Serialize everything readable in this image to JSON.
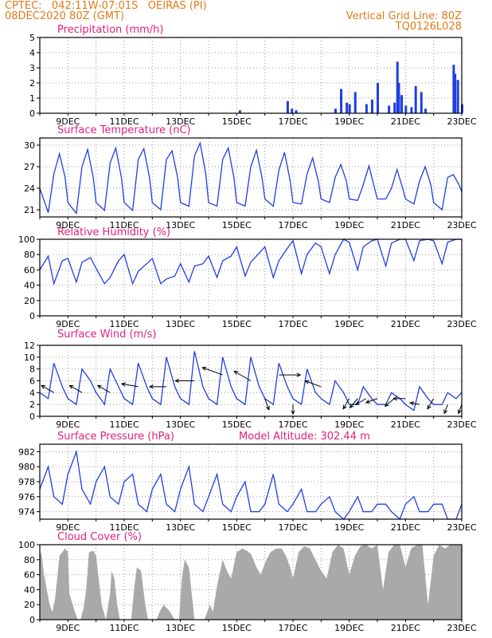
{
  "header": {
    "line1": "CPTEC:   042:11W-07:01S   OEIRAS (PI)",
    "line2": "08DEC2020 80Z (GMT)",
    "grid_note": "Vertical Grid Line: 80Z",
    "product": "TQ0126L028"
  },
  "colors": {
    "header": "#e07a18",
    "title": "#e0207a",
    "line": "#1f3fe0",
    "bar": "#1f3fe0",
    "cloud": "#a9a9a9",
    "grid": "#9a9a9a"
  },
  "x_tick_labels": [
    "9DEC",
    "11DEC",
    "13DEC",
    "15DEC",
    "17DEC",
    "19DEC",
    "21DEC",
    "23DEC"
  ],
  "chart_data": [
    {
      "id": "precip",
      "type": "bar",
      "title": "Precipitation (mm/h)",
      "x_days": [
        15.1,
        16.8,
        16.95,
        17.1,
        18.5,
        18.7,
        18.9,
        19.0,
        19.2,
        19.6,
        19.8,
        20.0,
        20.4,
        20.6,
        20.7,
        20.75,
        20.85,
        21.0,
        21.2,
        21.35,
        21.55,
        21.7,
        22.7,
        22.75,
        22.85,
        23.0
      ],
      "values": [
        0.2,
        0.8,
        0.3,
        0.2,
        0.3,
        1.6,
        0.7,
        0.6,
        1.4,
        0.6,
        0.9,
        2.0,
        0.5,
        0.7,
        3.4,
        2.0,
        1.2,
        0.5,
        0.4,
        1.8,
        1.4,
        0.3,
        3.2,
        2.6,
        2.2,
        0.6
      ],
      "ylim": [
        0,
        5
      ],
      "yticks": [
        0,
        1,
        2,
        3,
        4,
        5
      ]
    },
    {
      "id": "temp",
      "type": "line",
      "title": "Surface Temperature (nC)",
      "x_days": [
        8.0,
        8.3,
        8.5,
        8.7,
        8.9,
        9.0,
        9.3,
        9.5,
        9.7,
        9.9,
        10.0,
        10.3,
        10.5,
        10.7,
        10.9,
        11.0,
        11.3,
        11.5,
        11.7,
        11.9,
        12.0,
        12.3,
        12.5,
        12.7,
        12.9,
        13.0,
        13.3,
        13.5,
        13.7,
        13.9,
        14.0,
        14.3,
        14.5,
        14.7,
        14.9,
        15.0,
        15.3,
        15.5,
        15.7,
        15.9,
        16.0,
        16.3,
        16.5,
        16.7,
        16.9,
        17.0,
        17.3,
        17.5,
        17.7,
        17.9,
        18.0,
        18.3,
        18.5,
        18.7,
        18.9,
        19.0,
        19.3,
        19.5,
        19.7,
        19.9,
        20.0,
        20.3,
        20.5,
        20.7,
        20.9,
        21.0,
        21.3,
        21.5,
        21.7,
        21.9,
        22.0,
        22.3,
        22.5,
        22.7,
        22.9,
        23.0
      ],
      "values": [
        24.0,
        20.6,
        26.0,
        28.8,
        25.5,
        22.0,
        20.5,
        27.0,
        29.4,
        25.5,
        22.0,
        20.9,
        27.5,
        29.6,
        25.5,
        22.0,
        20.9,
        28.0,
        29.5,
        25.5,
        22.0,
        21.0,
        28.0,
        29.2,
        25.5,
        22.0,
        21.5,
        28.5,
        30.3,
        26.0,
        22.0,
        21.5,
        28.0,
        29.6,
        25.5,
        22.0,
        21.5,
        27.0,
        29.3,
        25.5,
        22.5,
        21.5,
        26.5,
        29.0,
        25.0,
        22.0,
        21.8,
        26.0,
        28.2,
        25.0,
        22.5,
        22.0,
        25.5,
        27.3,
        25.0,
        22.5,
        22.3,
        24.5,
        27.1,
        24.0,
        22.5,
        22.5,
        24.0,
        26.6,
        24.0,
        22.5,
        21.8,
        25.0,
        27.0,
        24.5,
        22.0,
        21.0,
        25.5,
        25.9,
        24.5,
        23.5
      ],
      "ylim": [
        20,
        31
      ],
      "yticks": [
        21,
        24,
        27,
        30
      ]
    },
    {
      "id": "rh",
      "type": "line",
      "title": "Relative Humidity (%)",
      "x_days": [
        8.0,
        8.3,
        8.5,
        8.8,
        9.0,
        9.3,
        9.5,
        9.8,
        10.0,
        10.3,
        10.5,
        10.8,
        11.0,
        11.3,
        11.5,
        11.8,
        12.0,
        12.3,
        12.5,
        12.8,
        13.0,
        13.3,
        13.5,
        13.8,
        14.0,
        14.3,
        14.5,
        14.8,
        15.0,
        15.3,
        15.5,
        15.8,
        16.0,
        16.3,
        16.5,
        16.8,
        17.0,
        17.3,
        17.5,
        17.8,
        18.0,
        18.3,
        18.5,
        18.8,
        19.0,
        19.3,
        19.5,
        19.8,
        20.0,
        20.3,
        20.5,
        20.8,
        21.0,
        21.3,
        21.5,
        21.8,
        22.0,
        22.3,
        22.5,
        22.8,
        23.0
      ],
      "values": [
        60,
        78,
        42,
        72,
        75,
        44,
        70,
        76,
        62,
        42,
        50,
        72,
        80,
        42,
        58,
        68,
        75,
        42,
        48,
        52,
        68,
        44,
        65,
        68,
        78,
        50,
        72,
        78,
        90,
        52,
        70,
        82,
        90,
        50,
        72,
        88,
        98,
        55,
        80,
        95,
        90,
        55,
        80,
        100,
        96,
        60,
        90,
        98,
        100,
        65,
        95,
        100,
        100,
        72,
        98,
        100,
        98,
        68,
        96,
        100,
        100
      ],
      "ylim": [
        0,
        100
      ],
      "yticks": [
        0,
        20,
        40,
        60,
        80,
        100
      ]
    },
    {
      "id": "wind",
      "type": "line",
      "title": "Surface Wind (m/s)",
      "x_days": [
        8.0,
        8.3,
        8.5,
        8.8,
        9.0,
        9.3,
        9.5,
        9.8,
        10.0,
        10.3,
        10.5,
        10.8,
        11.0,
        11.3,
        11.5,
        11.8,
        12.0,
        12.3,
        12.5,
        12.8,
        13.0,
        13.3,
        13.5,
        13.8,
        14.0,
        14.3,
        14.5,
        14.8,
        15.0,
        15.3,
        15.5,
        15.8,
        16.0,
        16.3,
        16.5,
        16.8,
        17.0,
        17.3,
        17.5,
        17.8,
        18.0,
        18.3,
        18.5,
        18.8,
        19.0,
        19.3,
        19.5,
        19.8,
        20.0,
        20.3,
        20.5,
        20.8,
        21.0,
        21.3,
        21.5,
        21.8,
        22.0,
        22.3,
        22.5,
        22.8,
        23.0
      ],
      "values": [
        4,
        3,
        9,
        5,
        3,
        2,
        8,
        6,
        4,
        2,
        8,
        5,
        3,
        2,
        9,
        5,
        3,
        2,
        10,
        5,
        3,
        2,
        11,
        5,
        3,
        2,
        10,
        5,
        3,
        2,
        10,
        5,
        3,
        2,
        9,
        5,
        3,
        2,
        8,
        4,
        3,
        2,
        6,
        4,
        2,
        2,
        5,
        3,
        2,
        2,
        4,
        3,
        2,
        1,
        5,
        3,
        2,
        2,
        4,
        3,
        4
      ],
      "ylim": [
        0,
        12
      ],
      "yticks": [
        0,
        2,
        4,
        6,
        8,
        10,
        12
      ],
      "vectors": [
        {
          "day": 8.5,
          "dir_deg": 300,
          "speed": 4
        },
        {
          "day": 9.5,
          "dir_deg": 300,
          "speed": 4
        },
        {
          "day": 10.5,
          "dir_deg": 300,
          "speed": 4
        },
        {
          "day": 11.5,
          "dir_deg": 280,
          "speed": 5
        },
        {
          "day": 12.5,
          "dir_deg": 270,
          "speed": 5
        },
        {
          "day": 13.5,
          "dir_deg": 270,
          "speed": 6
        },
        {
          "day": 14.5,
          "dir_deg": 290,
          "speed": 7
        },
        {
          "day": 15.5,
          "dir_deg": 300,
          "speed": 6
        },
        {
          "day": 16.0,
          "dir_deg": 160,
          "speed": 3
        },
        {
          "day": 16.5,
          "dir_deg": 90,
          "speed": 7
        },
        {
          "day": 17.0,
          "dir_deg": 180,
          "speed": 2
        },
        {
          "day": 18.0,
          "dir_deg": 290,
          "speed": 5
        },
        {
          "day": 19.0,
          "dir_deg": 210,
          "speed": 3
        },
        {
          "day": 19.3,
          "dir_deg": 220,
          "speed": 3
        },
        {
          "day": 19.6,
          "dir_deg": 240,
          "speed": 3
        },
        {
          "day": 20.0,
          "dir_deg": 250,
          "speed": 3
        },
        {
          "day": 20.6,
          "dir_deg": 230,
          "speed": 3
        },
        {
          "day": 21.0,
          "dir_deg": 270,
          "speed": 3
        },
        {
          "day": 21.5,
          "dir_deg": 280,
          "speed": 2
        },
        {
          "day": 22.0,
          "dir_deg": 210,
          "speed": 3
        },
        {
          "day": 22.5,
          "dir_deg": 200,
          "speed": 2
        },
        {
          "day": 23.0,
          "dir_deg": 200,
          "speed": 2
        }
      ]
    },
    {
      "id": "pressure",
      "type": "line",
      "title": "Surface Pressure (hPa)",
      "subtitle": "Model Altitude: 302.44 m",
      "x_days": [
        8.0,
        8.3,
        8.5,
        8.8,
        9.0,
        9.3,
        9.5,
        9.8,
        10.0,
        10.3,
        10.5,
        10.8,
        11.0,
        11.3,
        11.5,
        11.8,
        12.0,
        12.3,
        12.5,
        12.8,
        13.0,
        13.3,
        13.5,
        13.8,
        14.0,
        14.3,
        14.5,
        14.8,
        15.0,
        15.3,
        15.5,
        15.8,
        16.0,
        16.3,
        16.5,
        16.8,
        17.0,
        17.3,
        17.5,
        17.8,
        18.0,
        18.3,
        18.5,
        18.8,
        19.0,
        19.3,
        19.5,
        19.8,
        20.0,
        20.3,
        20.5,
        20.8,
        21.0,
        21.3,
        21.5,
        21.8,
        22.0,
        22.3,
        22.5,
        22.8,
        23.0
      ],
      "values": [
        977,
        980,
        976,
        975,
        979,
        982,
        977,
        975,
        978,
        980,
        976,
        975,
        978,
        979,
        975,
        974,
        977,
        979,
        975,
        974,
        977,
        980,
        975,
        974,
        976,
        979,
        975,
        974,
        976,
        978,
        974,
        974,
        975,
        979,
        975,
        974,
        975,
        977,
        974,
        974,
        975,
        976,
        974,
        973,
        974,
        976,
        974,
        974,
        975,
        975,
        974,
        973,
        975,
        976,
        974,
        974,
        975,
        975,
        973,
        973,
        975
      ],
      "ylim": [
        973,
        983
      ],
      "yticks": [
        974,
        976,
        978,
        980,
        982
      ]
    },
    {
      "id": "cloud",
      "type": "area",
      "title": "Cloud Cover (%)",
      "x_days": [
        8.0,
        8.05,
        8.15,
        8.25,
        8.35,
        8.45,
        8.55,
        8.7,
        8.9,
        9.0,
        9.05,
        9.25,
        9.35,
        9.45,
        9.55,
        9.65,
        9.75,
        9.9,
        10.0,
        10.2,
        10.35,
        10.5,
        10.55,
        10.65,
        10.75,
        10.85,
        11.0,
        11.15,
        11.25,
        11.35,
        11.45,
        11.6,
        11.75,
        11.85,
        11.95,
        12.05,
        12.15,
        12.25,
        12.4,
        12.6,
        12.8,
        12.95,
        13.05,
        13.15,
        13.3,
        13.5,
        13.65,
        13.75,
        13.85,
        13.95,
        14.05,
        14.15,
        14.3,
        14.5,
        14.65,
        14.8,
        15.0,
        15.2,
        15.35,
        15.5,
        15.7,
        15.85,
        16.0,
        16.2,
        16.4,
        16.6,
        16.75,
        16.9,
        17.0,
        17.2,
        17.4,
        17.6,
        17.8,
        18.0,
        18.2,
        18.4,
        18.6,
        18.8,
        19.0,
        19.2,
        19.4,
        19.6,
        19.8,
        20.0,
        20.2,
        20.4,
        20.6,
        20.8,
        21.0,
        21.2,
        21.4,
        21.6,
        21.8,
        22.0,
        22.2,
        22.4,
        22.6,
        22.8,
        23.0
      ],
      "values": [
        85,
        90,
        60,
        40,
        20,
        10,
        30,
        85,
        95,
        90,
        35,
        10,
        0,
        0,
        15,
        40,
        90,
        92,
        85,
        20,
        0,
        35,
        65,
        55,
        20,
        0,
        0,
        0,
        0,
        40,
        70,
        65,
        20,
        0,
        0,
        0,
        0,
        10,
        20,
        12,
        0,
        0,
        55,
        80,
        70,
        0,
        0,
        0,
        0,
        10,
        20,
        10,
        45,
        80,
        65,
        55,
        90,
        95,
        92,
        88,
        70,
        60,
        75,
        90,
        95,
        95,
        85,
        70,
        55,
        90,
        98,
        95,
        80,
        65,
        55,
        90,
        100,
        95,
        60,
        85,
        98,
        100,
        95,
        100,
        40,
        90,
        100,
        100,
        70,
        95,
        100,
        100,
        20,
        85,
        100,
        95,
        100,
        100,
        100
      ],
      "ylim": [
        0,
        100
      ],
      "yticks": [
        0,
        20,
        40,
        60,
        80,
        100
      ]
    }
  ]
}
